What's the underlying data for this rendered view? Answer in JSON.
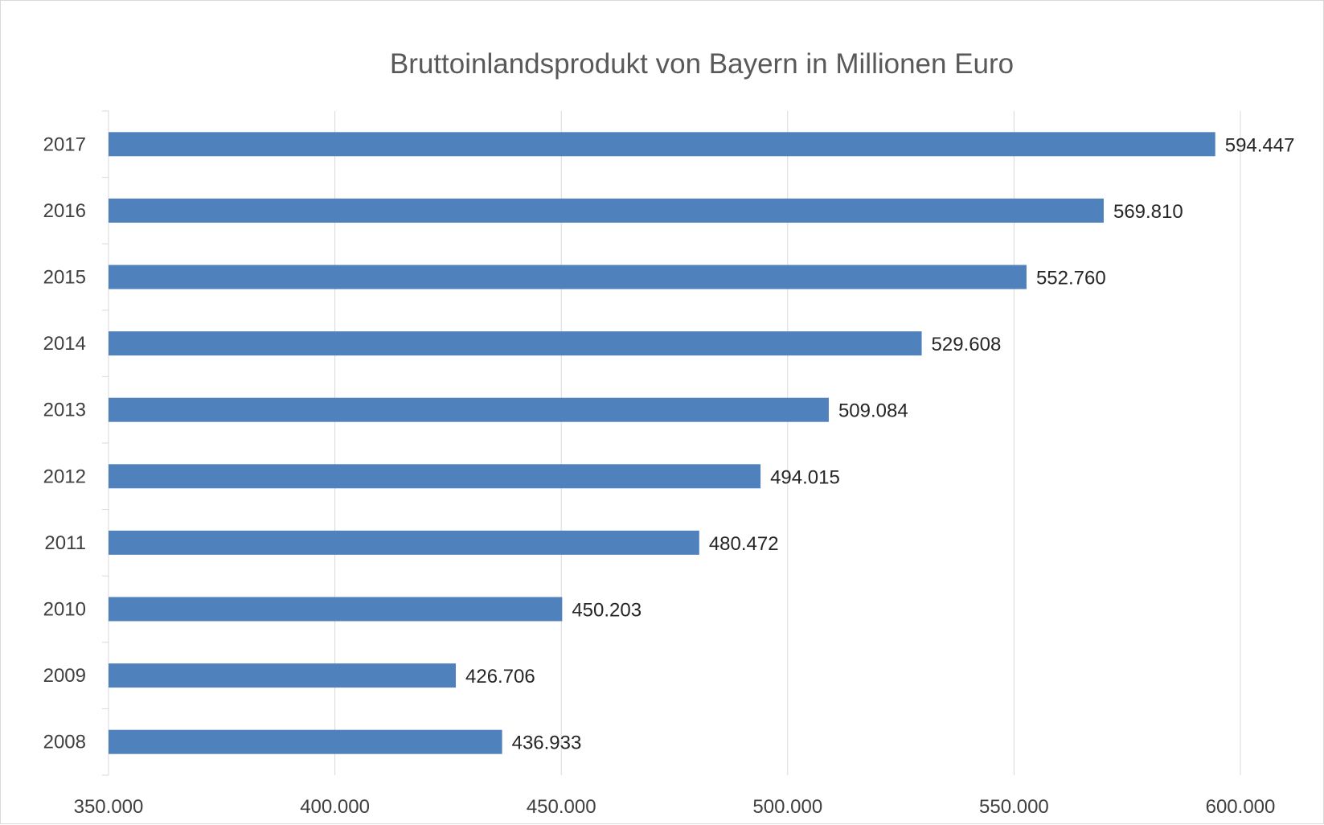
{
  "chart_data": {
    "type": "bar",
    "orientation": "horizontal",
    "title": "Bruttoinlandsprodukt von Bayern in Millionen Euro",
    "xlabel": "",
    "ylabel": "",
    "categories": [
      "2017",
      "2016",
      "2015",
      "2014",
      "2013",
      "2012",
      "2011",
      "2010",
      "2009",
      "2008"
    ],
    "values": [
      594447,
      569810,
      552760,
      529608,
      509084,
      494015,
      480472,
      450203,
      426706,
      436933
    ],
    "value_labels": [
      "594.447",
      "569.810",
      "552.760",
      "529.608",
      "509.084",
      "494.015",
      "480.472",
      "450.203",
      "426.706",
      "436.933"
    ],
    "xlim": [
      350000,
      600000
    ],
    "xticks": [
      350000,
      400000,
      450000,
      500000,
      550000,
      600000
    ],
    "xtick_labels": [
      "350.000",
      "400.000",
      "450.000",
      "500.000",
      "550.000",
      "600.000"
    ],
    "grid": true,
    "legend": "none",
    "bar_color": "#4f81bd",
    "grid_color": "#d9d9d9"
  }
}
